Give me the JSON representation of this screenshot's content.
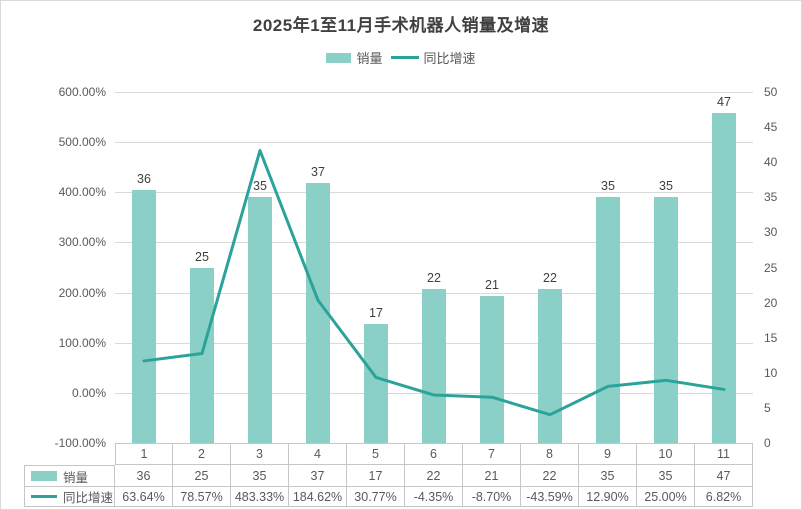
{
  "title": "2025年1至11月手术机器人销量及增速",
  "legend": {
    "bar_label": "销量",
    "line_label": "同比增速"
  },
  "colors": {
    "bar": "#8bd0c6",
    "line": "#2ba39a",
    "grid": "#d9d9d9",
    "table_border": "#c6c6c6",
    "title_text": "#404040",
    "axis_text": "#595959"
  },
  "chart_data": {
    "type": "bar+line combo with data table",
    "title": "2025年1至11月手术机器人销量及增速",
    "categories": [
      "1",
      "2",
      "3",
      "4",
      "5",
      "6",
      "7",
      "8",
      "9",
      "10",
      "11"
    ],
    "series": [
      {
        "name": "销量",
        "type": "bar",
        "axis": "right",
        "values": [
          36,
          25,
          35,
          37,
          17,
          22,
          21,
          22,
          35,
          35,
          47
        ],
        "labels": [
          "36",
          "25",
          "35",
          "37",
          "17",
          "22",
          "21",
          "22",
          "35",
          "35",
          "47"
        ]
      },
      {
        "name": "同比增速",
        "type": "line",
        "axis": "left",
        "values": [
          63.64,
          78.57,
          483.33,
          184.62,
          30.77,
          -4.35,
          -8.7,
          -43.59,
          12.9,
          25.0,
          6.82
        ],
        "labels": [
          "63.64%",
          "78.57%",
          "483.33%",
          "184.62%",
          "30.77%",
          "-4.35%",
          "-8.70%",
          "-43.59%",
          "12.90%",
          "25.00%",
          "6.82%"
        ]
      }
    ],
    "left_axis": {
      "min": -100,
      "max": 600,
      "ticks": [
        "600.00%",
        "500.00%",
        "400.00%",
        "300.00%",
        "200.00%",
        "100.00%",
        "0.00%",
        "-100.00%"
      ]
    },
    "right_axis": {
      "min": 0,
      "max": 50,
      "ticks": [
        "50",
        "45",
        "40",
        "35",
        "30",
        "25",
        "20",
        "15",
        "10",
        "5",
        "0"
      ]
    },
    "grid": true,
    "legend_position": "top",
    "data_table": true
  }
}
